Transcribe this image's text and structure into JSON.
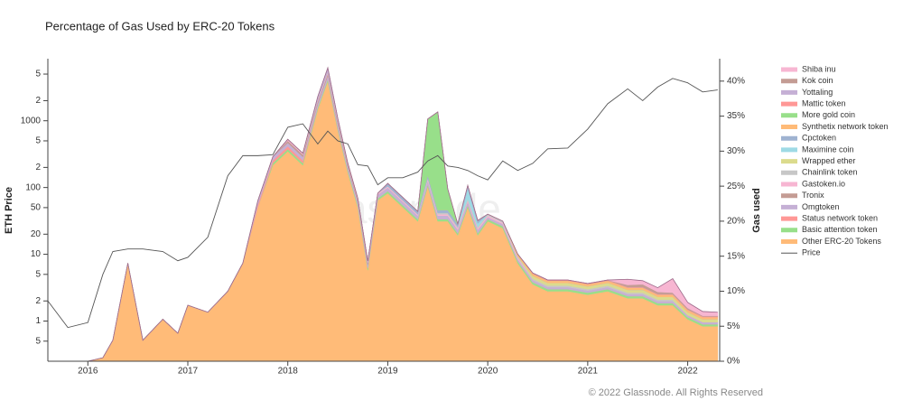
{
  "chart_data": {
    "type": "area",
    "title": "Percentage of Gas Used by ERC-20 Tokens",
    "ylabel": "ETH Price",
    "y2label": "Gas used",
    "watermark": "glassnode",
    "copyright": "© 2022 Glassnode. All Rights Reserved",
    "yscale": "log",
    "x": [
      2015.6,
      2015.8,
      2016.0,
      2016.15,
      2016.25,
      2016.4,
      2016.55,
      2016.75,
      2016.9,
      2017.0,
      2017.2,
      2017.4,
      2017.55,
      2017.7,
      2017.85,
      2018.0,
      2018.15,
      2018.3,
      2018.4,
      2018.5,
      2018.6,
      2018.7,
      2018.8,
      2018.9,
      2019.0,
      2019.15,
      2019.3,
      2019.4,
      2019.5,
      2019.6,
      2019.7,
      2019.8,
      2019.9,
      2020.0,
      2020.15,
      2020.3,
      2020.45,
      2020.6,
      2020.8,
      2021.0,
      2021.2,
      2021.4,
      2021.55,
      2021.7,
      2021.85,
      2022.0,
      2022.15,
      2022.3
    ],
    "xlim": [
      2015.6,
      2022.32
    ],
    "xticks": [
      2016,
      2017,
      2018,
      2019,
      2020,
      2021,
      2022
    ],
    "ylim": [
      0.25,
      8500
    ],
    "yticks": [
      {
        "value": 0.5,
        "label": "5"
      },
      1,
      2,
      5,
      10,
      20,
      50,
      100,
      {
        "value": 200,
        "label": "2"
      },
      {
        "value": 500,
        "label": "5"
      },
      1000,
      {
        "value": 2000,
        "label": "2"
      },
      {
        "value": 5000,
        "label": "5"
      }
    ],
    "y2lim": [
      0,
      43.2
    ],
    "y2ticks": [
      {
        "value": 0,
        "label": "0%"
      },
      {
        "value": 5,
        "label": "5%"
      },
      {
        "value": 10,
        "label": "10%"
      },
      {
        "value": 15,
        "label": "15%"
      },
      {
        "value": 20,
        "label": "20%"
      },
      {
        "value": 25,
        "label": "25%"
      },
      {
        "value": 30,
        "label": "30%"
      },
      {
        "value": 35,
        "label": "35%"
      },
      {
        "value": 40,
        "label": "40%"
      }
    ],
    "series": [
      {
        "name": "Shiba inu",
        "color": "#f7b6d2",
        "axis": "y2",
        "type": "area",
        "values": [
          0,
          0,
          0,
          0,
          0,
          0,
          0,
          0,
          0,
          0,
          0,
          0,
          0,
          0,
          0,
          0,
          0,
          0,
          0,
          0,
          0,
          0,
          0,
          0,
          0,
          0,
          0,
          0,
          0,
          0,
          0,
          0,
          0,
          0,
          0,
          0,
          0,
          0,
          0,
          0,
          0,
          0.8,
          0.5,
          0.6,
          2,
          0.8,
          0.6,
          0.5
        ]
      },
      {
        "name": "Kok coin",
        "color": "#c49c94",
        "axis": "y2",
        "type": "area",
        "values": [
          0,
          0,
          0,
          0,
          0,
          0,
          0,
          0,
          0,
          0,
          0,
          0,
          0,
          0,
          0,
          0,
          0,
          0,
          0,
          0,
          0,
          0,
          0,
          0,
          0,
          0,
          0,
          0,
          0,
          0,
          0,
          0,
          0,
          0,
          0,
          0,
          0,
          0,
          0,
          0,
          0,
          0.3,
          0.4,
          0.3,
          0.2,
          0.2,
          0.1,
          0.1
        ]
      },
      {
        "name": "Yottaling",
        "color": "#c5b0d5",
        "axis": "y2",
        "type": "area",
        "values": [
          0,
          0,
          0,
          0,
          0,
          0,
          0,
          0,
          0,
          0,
          0,
          0,
          0,
          0,
          0,
          0,
          0,
          0.5,
          0.6,
          0.4,
          0,
          0,
          0,
          0,
          0,
          0,
          0,
          0,
          0,
          0,
          0,
          0,
          0,
          0,
          0,
          0,
          0,
          0,
          0,
          0,
          0,
          0,
          0,
          0,
          0,
          0,
          0,
          0
        ]
      },
      {
        "name": "Mattic token",
        "color": "#ff9896",
        "axis": "y2",
        "type": "area",
        "values": [
          0,
          0,
          0,
          0,
          0,
          0,
          0,
          0,
          0,
          0,
          0,
          0,
          0,
          0,
          0,
          0,
          0,
          0,
          0,
          0,
          0,
          0,
          0,
          0,
          0,
          0,
          0,
          0,
          0,
          0,
          0,
          0,
          0,
          0,
          0,
          0,
          0.1,
          0.1,
          0.1,
          0.1,
          0.1,
          0.1,
          0.1,
          0.1,
          0.1,
          0.1,
          0.1,
          0.1
        ]
      },
      {
        "name": "More gold coin",
        "color": "#98df8a",
        "axis": "y2",
        "type": "area",
        "values": [
          0,
          0,
          0,
          0,
          0,
          0,
          0,
          0,
          0,
          0,
          0,
          0,
          0,
          0,
          0,
          0,
          0,
          0,
          0,
          0,
          0,
          0,
          0,
          0,
          0,
          0,
          0,
          8,
          14,
          3,
          0,
          0,
          0,
          0,
          0,
          0,
          0,
          0,
          0,
          0,
          0,
          0,
          0,
          0,
          0,
          0,
          0,
          0
        ]
      },
      {
        "name": "Synthetix network token",
        "color": "#ffbb78",
        "axis": "y2",
        "type": "area",
        "values": [
          0,
          0,
          0,
          0,
          0,
          0,
          0,
          0,
          0,
          0,
          0,
          0,
          0,
          0,
          0,
          0,
          0,
          0,
          0,
          0,
          0,
          0,
          0,
          0,
          0,
          0,
          0,
          0,
          0,
          0,
          0,
          0,
          0,
          0,
          0,
          0.3,
          0.3,
          0.3,
          0.3,
          0.3,
          0.3,
          0.3,
          0.3,
          0.3,
          0.3,
          0.3,
          0.3,
          0.3
        ]
      },
      {
        "name": "Cpctoken",
        "color": "#9fb3d1",
        "axis": "y2",
        "type": "area",
        "values": [
          0,
          0,
          0,
          0,
          0,
          0,
          0,
          0,
          0,
          0,
          0,
          0,
          0,
          0,
          0,
          0,
          0,
          0,
          0,
          0,
          0,
          0,
          0,
          0,
          0.4,
          0.4,
          0.4,
          0.4,
          0.4,
          0.4,
          0.4,
          0.4,
          0.4,
          0,
          0,
          0,
          0,
          0,
          0,
          0,
          0,
          0,
          0,
          0,
          0,
          0,
          0,
          0
        ]
      },
      {
        "name": "Maximine coin",
        "color": "#9edae5",
        "axis": "y2",
        "type": "area",
        "values": [
          0,
          0,
          0,
          0,
          0,
          0,
          0,
          0,
          0,
          0,
          0,
          0,
          0,
          0,
          0,
          0,
          0,
          0,
          0,
          0,
          0,
          0,
          0,
          0,
          0,
          0,
          0,
          0,
          0,
          0,
          0,
          1.5,
          0.5,
          0,
          0,
          0,
          0,
          0,
          0,
          0,
          0,
          0,
          0,
          0,
          0,
          0,
          0,
          0
        ]
      },
      {
        "name": "Wrapped ether",
        "color": "#dbdb8d",
        "axis": "y2",
        "type": "area",
        "values": [
          0,
          0,
          0,
          0,
          0,
          0,
          0,
          0,
          0,
          0,
          0,
          0,
          0,
          0,
          0,
          0,
          0,
          0,
          0,
          0,
          0,
          0,
          0,
          0,
          0,
          0,
          0,
          0,
          0,
          0,
          0,
          0,
          0,
          0,
          0,
          0,
          0.4,
          0.4,
          0.4,
          0.4,
          0.4,
          0.4,
          0.4,
          0.4,
          0.4,
          0.4,
          0.4,
          0.4
        ]
      },
      {
        "name": "Chainlink token",
        "color": "#c7c7c7",
        "axis": "y2",
        "type": "area",
        "values": [
          0,
          0,
          0,
          0,
          0,
          0,
          0,
          0,
          0,
          0,
          0,
          0,
          0,
          0,
          0,
          0,
          0,
          0,
          0,
          0,
          0,
          0,
          0,
          0,
          0,
          0,
          0,
          0.2,
          0.2,
          0.2,
          0.2,
          0.2,
          0.2,
          0.2,
          0.2,
          0.2,
          0.2,
          0.2,
          0.2,
          0.2,
          0.2,
          0.2,
          0.2,
          0.2,
          0.2,
          0,
          0,
          0
        ]
      },
      {
        "name": "Gastoken.io",
        "color": "#f7b6d2",
        "axis": "y2",
        "type": "area",
        "values": [
          0,
          0,
          0,
          0,
          0,
          0,
          0,
          0,
          0,
          0,
          0,
          0,
          0,
          0,
          0,
          0.2,
          0.2,
          0.2,
          0.2,
          0.2,
          0.2,
          0.2,
          0.2,
          0.2,
          0.2,
          0.2,
          0.2,
          0.2,
          0.2,
          0.2,
          0.2,
          0.2,
          0.2,
          0.2,
          0.2,
          0.2,
          0,
          0,
          0,
          0,
          0,
          0,
          0,
          0,
          0,
          0,
          0,
          0
        ]
      },
      {
        "name": "Tronix",
        "color": "#c49c94",
        "axis": "y2",
        "type": "area",
        "values": [
          0,
          0,
          0,
          0,
          0,
          0,
          0,
          0,
          0,
          0,
          0,
          0,
          0,
          0,
          0,
          0.3,
          0.3,
          0.3,
          0.3,
          0.3,
          0.3,
          0.3,
          0.3,
          0,
          0,
          0,
          0,
          0,
          0,
          0,
          0,
          0,
          0,
          0,
          0,
          0,
          0,
          0,
          0,
          0,
          0,
          0,
          0,
          0,
          0,
          0,
          0,
          0
        ]
      },
      {
        "name": "Omgtoken",
        "color": "#c5b0d5",
        "axis": "y2",
        "type": "area",
        "values": [
          0,
          0,
          0,
          0,
          0,
          0,
          0,
          0,
          0,
          0,
          0,
          0,
          0,
          0.5,
          0.5,
          0.5,
          0.5,
          0.5,
          0.5,
          0.5,
          0.5,
          0.5,
          0.5,
          0.5,
          0.5,
          0.5,
          0.5,
          0.5,
          0.5,
          0.5,
          0.5,
          0.5,
          0.5,
          0.3,
          0.3,
          0.3,
          0.3,
          0.3,
          0.3,
          0.3,
          0.3,
          0.3,
          0.3,
          0.3,
          0.3,
          0.3,
          0.3,
          0.3
        ]
      },
      {
        "name": "Status network token",
        "color": "#ff9896",
        "axis": "y2",
        "type": "area",
        "values": [
          0,
          0,
          0,
          0,
          0,
          0,
          0,
          0,
          0,
          0,
          0,
          0,
          0,
          0.4,
          0.4,
          0.4,
          0.4,
          0,
          0,
          0,
          0,
          0,
          0,
          0,
          0,
          0,
          0,
          0,
          0,
          0,
          0,
          0,
          0,
          0,
          0,
          0,
          0,
          0,
          0,
          0,
          0,
          0,
          0,
          0,
          0,
          0,
          0,
          0
        ]
      },
      {
        "name": "Basic attention token",
        "color": "#98df8a",
        "axis": "y2",
        "type": "area",
        "values": [
          0,
          0,
          0,
          0,
          0,
          0,
          0,
          0,
          0,
          0,
          0,
          0,
          0,
          0,
          0.3,
          0.3,
          0.3,
          0.3,
          0.3,
          0.3,
          0.3,
          0.3,
          0.3,
          0.3,
          0.3,
          0.3,
          0.3,
          0.3,
          0.3,
          0.3,
          0.3,
          0.3,
          0.3,
          0.3,
          0.3,
          0.3,
          0.3,
          0.3,
          0.3,
          0.3,
          0.3,
          0.3,
          0.3,
          0.3,
          0.3,
          0.3,
          0.3,
          0.3
        ]
      },
      {
        "name": "Other ERC-20 Tokens",
        "color": "#ffbb78",
        "axis": "y2",
        "type": "area",
        "values": [
          0,
          0,
          0,
          0.5,
          3,
          14,
          3,
          6,
          4,
          8,
          7,
          10,
          14,
          22,
          28,
          30,
          28,
          36,
          40,
          33,
          27,
          22,
          13,
          23,
          24,
          22,
          20,
          25,
          20,
          20,
          18,
          22,
          18,
          20,
          19,
          14,
          11,
          10,
          10,
          9.5,
          10,
          9,
          9,
          8,
          8,
          6,
          5,
          5
        ]
      },
      {
        "name": "Price",
        "color": "#555555",
        "axis": "y",
        "type": "line",
        "values": [
          2,
          0.8,
          0.95,
          5,
          11,
          12,
          12,
          11,
          8,
          9,
          18,
          150,
          300,
          300,
          310,
          800,
          900,
          450,
          700,
          500,
          450,
          220,
          210,
          110,
          140,
          140,
          170,
          250,
          300,
          210,
          200,
          180,
          150,
          130,
          250,
          180,
          230,
          380,
          390,
          750,
          1800,
          3000,
          2000,
          3200,
          4300,
          3700,
          2700,
          2900
        ]
      }
    ]
  }
}
